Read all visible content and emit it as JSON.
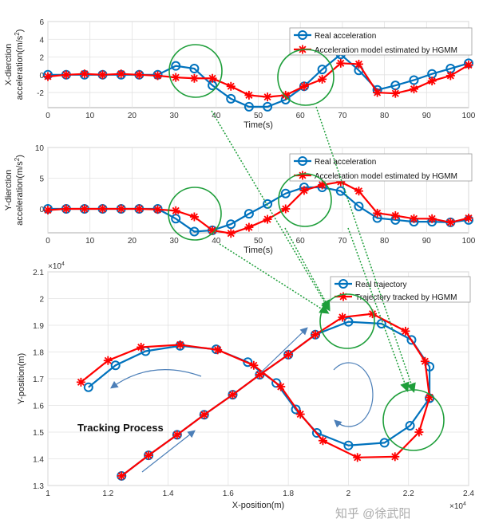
{
  "chart_data": [
    {
      "type": "line",
      "xlabel": "Time(s)",
      "ylabel_line1": "X-dierction",
      "ylabel_line2": "acceleration(m/s",
      "ylabel_sup": "2",
      "ylabel_close": ")",
      "xlim": [
        0,
        100
      ],
      "ylim": [
        -3.7,
        6
      ],
      "xticks": [
        "0",
        "10",
        "20",
        "30",
        "40",
        "50",
        "60",
        "70",
        "80",
        "90",
        "100"
      ],
      "yticks": [
        "-2",
        "0",
        "2",
        "4",
        "6"
      ],
      "grid": true,
      "legend_position": "top-right",
      "x": [
        0,
        4.35,
        8.7,
        13,
        17.4,
        21.7,
        26.1,
        30.4,
        34.8,
        39.1,
        43.5,
        47.8,
        52.2,
        56.5,
        60.9,
        65.2,
        69.6,
        73.9,
        78.3,
        82.6,
        87,
        91.3,
        95.7,
        100
      ],
      "series": [
        {
          "name": "Real acceleration",
          "color": "#0072BD",
          "marker": "circle",
          "values": [
            0,
            0,
            0,
            0,
            0,
            0,
            0,
            1,
            0.7,
            -1.2,
            -2.7,
            -3.6,
            -3.6,
            -2.8,
            -1.3,
            0.6,
            2.3,
            0.5,
            -1.7,
            -1.2,
            -0.6,
            0.1,
            0.7,
            1.3
          ]
        },
        {
          "name": "Acceleration model estimated by HGMM",
          "color": "#FF0000",
          "marker": "asterisk",
          "values": [
            -0.2,
            0,
            0.1,
            0,
            0.1,
            0,
            -0.1,
            -0.3,
            -0.4,
            -0.4,
            -1.3,
            -2.3,
            -2.5,
            -2.3,
            -1.3,
            -0.5,
            1.3,
            1.2,
            -2,
            -2.1,
            -1.6,
            -0.7,
            -0.1,
            1.1
          ]
        }
      ]
    },
    {
      "type": "line",
      "xlabel": "Time(s)",
      "ylabel_line1": "Y-dierction",
      "ylabel_line2": "acceleration(m/s",
      "ylabel_sup": "2",
      "ylabel_close": ")",
      "xlim": [
        0,
        100
      ],
      "ylim": [
        -3.9,
        10
      ],
      "xticks": [
        "0",
        "10",
        "20",
        "30",
        "40",
        "50",
        "60",
        "70",
        "80",
        "90",
        "100"
      ],
      "yticks": [
        "0",
        "5",
        "10"
      ],
      "grid": true,
      "legend_position": "top-right",
      "x": [
        0,
        4.35,
        8.7,
        13,
        17.4,
        21.7,
        26.1,
        30.4,
        34.8,
        39.1,
        43.5,
        47.8,
        52.2,
        56.5,
        60.9,
        65.2,
        69.6,
        73.9,
        78.3,
        82.6,
        87,
        91.3,
        95.7,
        100
      ],
      "series": [
        {
          "name": "Real acceleration",
          "color": "#0072BD",
          "marker": "circle",
          "values": [
            0,
            0,
            0,
            0,
            0,
            0,
            0,
            -1.6,
            -3.7,
            -3.5,
            -2.5,
            -0.8,
            0.8,
            2.5,
            3.5,
            3.5,
            2.9,
            0.4,
            -1.5,
            -1.8,
            -2.1,
            -2.1,
            -2.2,
            -1.8
          ]
        },
        {
          "name": "Acceleration model estimated by HGMM",
          "color": "#FF0000",
          "marker": "asterisk",
          "values": [
            -0.2,
            0,
            0,
            0,
            0,
            0,
            -0.1,
            -0.3,
            -1.3,
            -3.5,
            -4,
            -3,
            -1.7,
            0,
            3,
            3.9,
            4.4,
            2.9,
            -0.7,
            -1.1,
            -1.6,
            -1.6,
            -2.2,
            -1.5
          ]
        }
      ]
    },
    {
      "type": "line",
      "xlabel": "X-position(m)",
      "ylabel": "Y-position(m)",
      "x_exponent": "×10",
      "y_exponent": "×10",
      "exponent_power": "4",
      "xlim": [
        1,
        2.4
      ],
      "ylim": [
        1.3,
        2.1
      ],
      "xticks": [
        "1",
        "1.2",
        "1.4",
        "1.6",
        "1.8",
        "2",
        "2.2",
        "2.4"
      ],
      "yticks": [
        "1.3",
        "1.4",
        "1.5",
        "1.6",
        "1.7",
        "1.8",
        "1.9",
        "2",
        "2.1"
      ],
      "grid": true,
      "legend_position": "top-right",
      "annotation": "Tracking Process",
      "series": [
        {
          "name": "Real trajectory",
          "color": "#0072BD",
          "marker": "circle",
          "points": [
            [
              1.245,
              1.336
            ],
            [
              1.335,
              1.413
            ],
            [
              1.43,
              1.49
            ],
            [
              1.52,
              1.565
            ],
            [
              1.615,
              1.64
            ],
            [
              1.705,
              1.715
            ],
            [
              1.8,
              1.79
            ],
            [
              1.89,
              1.865
            ],
            [
              2.0,
              1.913
            ],
            [
              2.11,
              1.906
            ],
            [
              2.21,
              1.845
            ],
            [
              2.27,
              1.745
            ],
            [
              2.27,
              1.627
            ],
            [
              2.205,
              1.524
            ],
            [
              2.12,
              1.46
            ],
            [
              2.0,
              1.45
            ],
            [
              1.895,
              1.497
            ],
            [
              1.825,
              1.585
            ],
            [
              1.76,
              1.684
            ],
            [
              1.665,
              1.762
            ],
            [
              1.56,
              1.81
            ],
            [
              1.44,
              1.823
            ],
            [
              1.325,
              1.803
            ],
            [
              1.225,
              1.75
            ],
            [
              1.135,
              1.668
            ]
          ]
        },
        {
          "name": "Trajectory tracked by HGMM",
          "color": "#FF0000",
          "marker": "asterisk",
          "points": [
            [
              1.245,
              1.336
            ],
            [
              1.335,
              1.413
            ],
            [
              1.43,
              1.49
            ],
            [
              1.52,
              1.565
            ],
            [
              1.615,
              1.64
            ],
            [
              1.705,
              1.715
            ],
            [
              1.8,
              1.79
            ],
            [
              1.89,
              1.865
            ],
            [
              1.98,
              1.93
            ],
            [
              2.08,
              1.943
            ],
            [
              2.19,
              1.878
            ],
            [
              2.255,
              1.765
            ],
            [
              2.27,
              1.63
            ],
            [
              2.235,
              1.5
            ],
            [
              2.155,
              1.408
            ],
            [
              2.03,
              1.405
            ],
            [
              1.915,
              1.468
            ],
            [
              1.84,
              1.567
            ],
            [
              1.775,
              1.67
            ],
            [
              1.685,
              1.75
            ],
            [
              1.565,
              1.808
            ],
            [
              1.44,
              1.827
            ],
            [
              1.31,
              1.818
            ],
            [
              1.2,
              1.768
            ],
            [
              1.11,
              1.687
            ]
          ]
        }
      ]
    }
  ],
  "watermark": "知乎 @徐武阳",
  "highlight_color": "#1E9E3A"
}
